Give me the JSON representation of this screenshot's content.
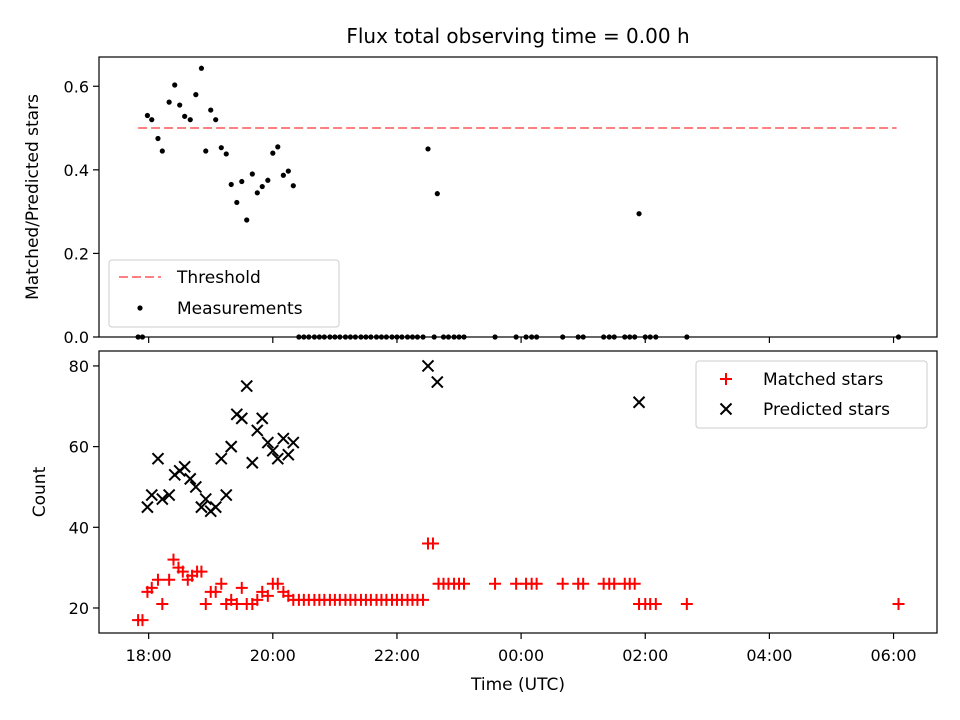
{
  "chart_data": {
    "type": "scatter",
    "title": "Flux total observing time = 0.00 h",
    "xlabel": "Time (UTC)",
    "x_ticks": [
      "18:00",
      "20:00",
      "22:00",
      "00:00",
      "02:00",
      "04:00",
      "06:00"
    ],
    "x_tick_hours": [
      18,
      20,
      22,
      24,
      26,
      28,
      30
    ],
    "xlim_hours": [
      17.2,
      30.7
    ],
    "panels": [
      {
        "name": "ratio",
        "ylabel": "Matched/Predicted stars",
        "ylim": [
          0,
          0.67
        ],
        "y_ticks": [
          0.0,
          0.2,
          0.4,
          0.6
        ],
        "y_tick_labels": [
          "0.0",
          "0.2",
          "0.4",
          "0.6"
        ],
        "legend": {
          "position": "lower-left",
          "entries": [
            "Threshold",
            "Measurements"
          ]
        },
        "threshold": {
          "name": "Threshold",
          "value": 0.5,
          "x_range_hours": [
            17.83,
            30.05
          ],
          "color": "#ff8080"
        },
        "series": [
          {
            "name": "Measurements",
            "marker": "dot",
            "color": "#000000",
            "points": [
              [
                17.83,
                0.0
              ],
              [
                17.9,
                0.0
              ],
              [
                17.98,
                0.53
              ],
              [
                18.05,
                0.52
              ],
              [
                18.15,
                0.475
              ],
              [
                18.22,
                0.445
              ],
              [
                18.33,
                0.562
              ],
              [
                18.42,
                0.603
              ],
              [
                18.5,
                0.555
              ],
              [
                18.58,
                0.528
              ],
              [
                18.67,
                0.52
              ],
              [
                18.76,
                0.58
              ],
              [
                18.85,
                0.643
              ],
              [
                18.92,
                0.445
              ],
              [
                19.0,
                0.543
              ],
              [
                19.08,
                0.52
              ],
              [
                19.17,
                0.453
              ],
              [
                19.25,
                0.438
              ],
              [
                19.33,
                0.365
              ],
              [
                19.42,
                0.322
              ],
              [
                19.5,
                0.372
              ],
              [
                19.58,
                0.28
              ],
              [
                19.67,
                0.39
              ],
              [
                19.75,
                0.345
              ],
              [
                19.83,
                0.36
              ],
              [
                19.92,
                0.375
              ],
              [
                20.0,
                0.44
              ],
              [
                20.08,
                0.455
              ],
              [
                20.17,
                0.387
              ],
              [
                20.25,
                0.397
              ],
              [
                20.33,
                0.362
              ],
              [
                20.42,
                0.0
              ],
              [
                20.5,
                0.0
              ],
              [
                20.58,
                0.0
              ],
              [
                20.67,
                0.0
              ],
              [
                20.75,
                0.0
              ],
              [
                20.83,
                0.0
              ],
              [
                20.92,
                0.0
              ],
              [
                21.0,
                0.0
              ],
              [
                21.08,
                0.0
              ],
              [
                21.17,
                0.0
              ],
              [
                21.25,
                0.0
              ],
              [
                21.33,
                0.0
              ],
              [
                21.42,
                0.0
              ],
              [
                21.5,
                0.0
              ],
              [
                21.58,
                0.0
              ],
              [
                21.67,
                0.0
              ],
              [
                21.75,
                0.0
              ],
              [
                21.83,
                0.0
              ],
              [
                21.92,
                0.0
              ],
              [
                22.0,
                0.0
              ],
              [
                22.08,
                0.0
              ],
              [
                22.17,
                0.0
              ],
              [
                22.25,
                0.0
              ],
              [
                22.33,
                0.0
              ],
              [
                22.42,
                0.0
              ],
              [
                22.5,
                0.45
              ],
              [
                22.6,
                0.0
              ],
              [
                22.65,
                0.343
              ],
              [
                22.75,
                0.0
              ],
              [
                22.83,
                0.0
              ],
              [
                22.92,
                0.0
              ],
              [
                23.0,
                0.0
              ],
              [
                23.08,
                0.0
              ],
              [
                23.58,
                0.0
              ],
              [
                23.92,
                0.0
              ],
              [
                24.08,
                0.0
              ],
              [
                24.17,
                0.0
              ],
              [
                24.25,
                0.0
              ],
              [
                24.67,
                0.0
              ],
              [
                24.92,
                0.0
              ],
              [
                25.0,
                0.0
              ],
              [
                25.33,
                0.0
              ],
              [
                25.42,
                0.0
              ],
              [
                25.5,
                0.0
              ],
              [
                25.67,
                0.0
              ],
              [
                25.75,
                0.0
              ],
              [
                25.83,
                0.0
              ],
              [
                25.9,
                0.295
              ],
              [
                26.0,
                0.0
              ],
              [
                26.08,
                0.0
              ],
              [
                26.17,
                0.0
              ],
              [
                26.67,
                0.0
              ],
              [
                30.08,
                0.0
              ]
            ]
          }
        ]
      },
      {
        "name": "counts",
        "ylabel": "Count",
        "ylim": [
          13.8,
          83.7
        ],
        "y_ticks": [
          20,
          40,
          60,
          80
        ],
        "y_tick_labels": [
          "20",
          "40",
          "60",
          "80"
        ],
        "legend": {
          "position": "top-right",
          "entries": [
            "Matched stars",
            "Predicted stars"
          ]
        },
        "series": [
          {
            "name": "Matched stars",
            "marker": "plus",
            "color": "#ff0000",
            "points": [
              [
                17.83,
                17
              ],
              [
                17.9,
                17
              ],
              [
                17.98,
                24
              ],
              [
                18.05,
                25
              ],
              [
                18.15,
                27
              ],
              [
                18.22,
                21
              ],
              [
                18.33,
                27
              ],
              [
                18.4,
                32
              ],
              [
                18.48,
                30
              ],
              [
                18.55,
                29
              ],
              [
                18.63,
                27
              ],
              [
                18.7,
                28
              ],
              [
                18.78,
                29
              ],
              [
                18.85,
                29
              ],
              [
                18.92,
                21
              ],
              [
                19.0,
                24
              ],
              [
                19.08,
                24
              ],
              [
                19.17,
                26
              ],
              [
                19.25,
                21
              ],
              [
                19.33,
                22
              ],
              [
                19.42,
                21
              ],
              [
                19.5,
                25
              ],
              [
                19.58,
                21
              ],
              [
                19.67,
                21
              ],
              [
                19.75,
                22
              ],
              [
                19.83,
                24
              ],
              [
                19.92,
                23
              ],
              [
                20.0,
                26
              ],
              [
                20.08,
                26
              ],
              [
                20.17,
                24
              ],
              [
                20.25,
                23
              ],
              [
                20.33,
                22
              ],
              [
                20.42,
                22
              ],
              [
                20.5,
                22
              ],
              [
                20.58,
                22
              ],
              [
                20.67,
                22
              ],
              [
                20.75,
                22
              ],
              [
                20.83,
                22
              ],
              [
                20.92,
                22
              ],
              [
                21.0,
                22
              ],
              [
                21.08,
                22
              ],
              [
                21.17,
                22
              ],
              [
                21.25,
                22
              ],
              [
                21.33,
                22
              ],
              [
                21.42,
                22
              ],
              [
                21.5,
                22
              ],
              [
                21.58,
                22
              ],
              [
                21.67,
                22
              ],
              [
                21.75,
                22
              ],
              [
                21.83,
                22
              ],
              [
                21.92,
                22
              ],
              [
                22.0,
                22
              ],
              [
                22.08,
                22
              ],
              [
                22.17,
                22
              ],
              [
                22.25,
                22
              ],
              [
                22.33,
                22
              ],
              [
                22.42,
                22
              ],
              [
                22.5,
                36
              ],
              [
                22.58,
                36
              ],
              [
                22.67,
                26
              ],
              [
                22.75,
                26
              ],
              [
                22.83,
                26
              ],
              [
                22.92,
                26
              ],
              [
                23.0,
                26
              ],
              [
                23.08,
                26
              ],
              [
                23.58,
                26
              ],
              [
                23.92,
                26
              ],
              [
                24.08,
                26
              ],
              [
                24.17,
                26
              ],
              [
                24.25,
                26
              ],
              [
                24.67,
                26
              ],
              [
                24.92,
                26
              ],
              [
                25.0,
                26
              ],
              [
                25.33,
                26
              ],
              [
                25.42,
                26
              ],
              [
                25.5,
                26
              ],
              [
                25.67,
                26
              ],
              [
                25.75,
                26
              ],
              [
                25.83,
                26
              ],
              [
                25.9,
                21
              ],
              [
                26.0,
                21
              ],
              [
                26.08,
                21
              ],
              [
                26.17,
                21
              ],
              [
                26.67,
                21
              ],
              [
                30.08,
                21
              ]
            ]
          },
          {
            "name": "Predicted stars",
            "marker": "x",
            "color": "#000000",
            "points": [
              [
                17.98,
                45
              ],
              [
                18.05,
                48
              ],
              [
                18.15,
                57
              ],
              [
                18.22,
                47
              ],
              [
                18.33,
                48
              ],
              [
                18.42,
                53
              ],
              [
                18.5,
                54
              ],
              [
                18.58,
                55
              ],
              [
                18.67,
                52
              ],
              [
                18.76,
                50
              ],
              [
                18.85,
                45
              ],
              [
                18.92,
                47
              ],
              [
                19.0,
                44
              ],
              [
                19.08,
                45
              ],
              [
                19.17,
                57
              ],
              [
                19.25,
                48
              ],
              [
                19.33,
                60
              ],
              [
                19.42,
                68
              ],
              [
                19.5,
                67
              ],
              [
                19.58,
                75
              ],
              [
                19.67,
                56
              ],
              [
                19.75,
                64
              ],
              [
                19.83,
                67
              ],
              [
                19.92,
                61
              ],
              [
                20.0,
                59
              ],
              [
                20.08,
                57
              ],
              [
                20.17,
                62
              ],
              [
                20.25,
                58
              ],
              [
                20.33,
                61
              ],
              [
                22.5,
                80
              ],
              [
                22.65,
                76
              ],
              [
                25.9,
                71
              ]
            ]
          }
        ]
      }
    ]
  }
}
